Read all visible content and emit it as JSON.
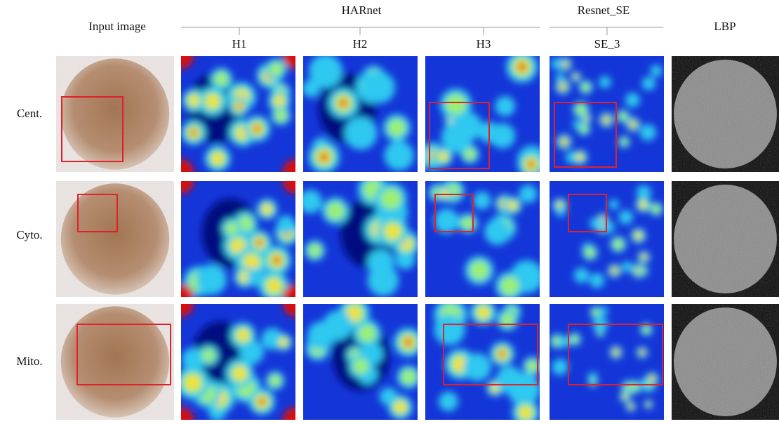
{
  "headers": {
    "input": "Input image",
    "groups": [
      {
        "title": "HARnet",
        "columns": [
          "H1",
          "H2",
          "H3"
        ]
      },
      {
        "title": "Resnet_SE",
        "columns": [
          "SE_3"
        ]
      }
    ],
    "lbp": "LBP"
  },
  "rows": [
    "Cent.",
    "Cyto.",
    "Mito."
  ]
}
